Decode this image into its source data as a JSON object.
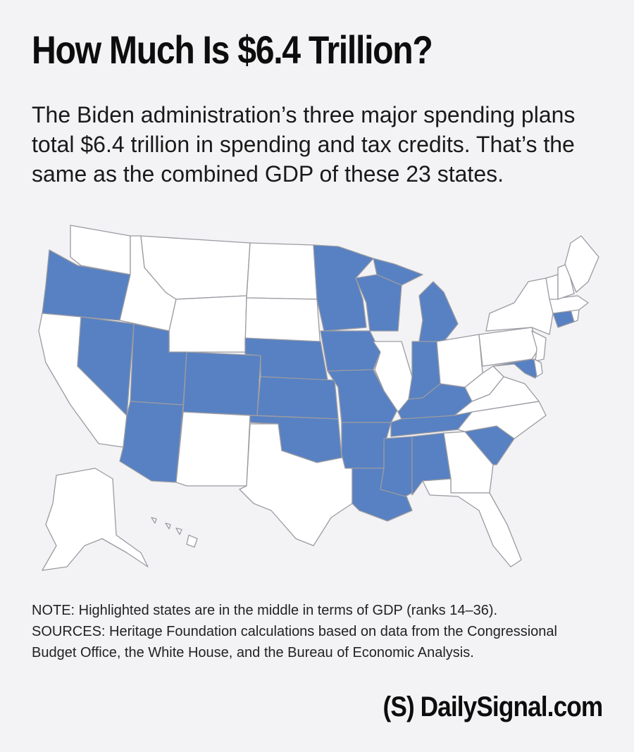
{
  "header": {
    "title": "How Much Is $6.4 Trillion?",
    "subtitle": "The Biden administration’s three major spending plans total $6.4 trillion in spending and tax credits. That’s the same as the combined GDP of these 23 states."
  },
  "map": {
    "highlight_color": "#5781c2",
    "base_color": "#ffffff",
    "border_color": "#9a9aa2",
    "highlighted_states": [
      "OR",
      "NV",
      "UT",
      "AZ",
      "CO",
      "NE",
      "KS",
      "OK",
      "MN",
      "IA",
      "MO",
      "AR",
      "LA",
      "WI",
      "MI",
      "IN",
      "KY",
      "TN",
      "MS",
      "AL",
      "SC",
      "CT",
      "MD"
    ]
  },
  "notes": {
    "note": "NOTE: Highlighted states are in the middle in terms of GDP (ranks 14–36).",
    "sources_line1": "SOURCES: Heritage Foundation calculations based on data from the Congressional",
    "sources_line2": "Budget Office, the White House, and the Bureau of Economic Analysis."
  },
  "brand": {
    "logo": "(S)",
    "site": "DailySignal.com"
  }
}
